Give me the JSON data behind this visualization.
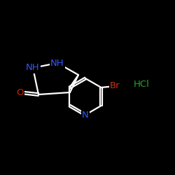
{
  "background_color": "#000000",
  "bond_color": "#ffffff",
  "figsize": [
    2.5,
    2.5
  ],
  "dpi": 100,
  "label_NH1": {
    "text": "NH",
    "color": "#3355ff",
    "fontsize": 9.5
  },
  "label_NH2": {
    "text": "NH",
    "color": "#3355ff",
    "fontsize": 9.5
  },
  "label_O": {
    "text": "O",
    "color": "#cc2200",
    "fontsize": 9.5
  },
  "label_N": {
    "text": "N",
    "color": "#3355ff",
    "fontsize": 9.5
  },
  "label_Br": {
    "text": "Br",
    "color": "#cc3311",
    "fontsize": 9.5
  },
  "label_HCl": {
    "text": "HCl",
    "color": "#22aa22",
    "fontsize": 9.5
  }
}
